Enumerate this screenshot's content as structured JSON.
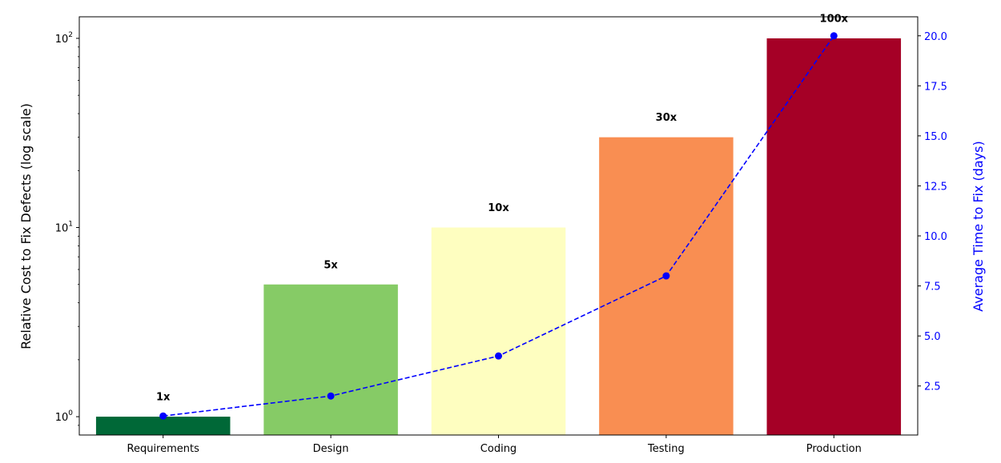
{
  "chart_data": {
    "type": "bar",
    "categories": [
      "Requirements",
      "Design",
      "Coding",
      "Testing",
      "Production"
    ],
    "values": [
      1,
      5,
      10,
      30,
      100
    ],
    "bar_labels": [
      "1x",
      "5x",
      "10x",
      "30x",
      "100x"
    ],
    "bar_colors": [
      "#006837",
      "#86cb66",
      "#fefec0",
      "#f98e52",
      "#a50026"
    ],
    "ylabel": "Relative Cost to Fix Defects (log scale)",
    "yscale": "log",
    "ylim": [
      0.8,
      130
    ],
    "yticks": [
      {
        "value": 1,
        "base": "10",
        "exp": "0"
      },
      {
        "value": 10,
        "base": "10",
        "exp": "1"
      },
      {
        "value": 100,
        "base": "10",
        "exp": "2"
      }
    ],
    "secondary": {
      "type": "line",
      "values": [
        1,
        2,
        4,
        8,
        20
      ],
      "ylabel": "Average Time to Fix (days)",
      "ylim": [
        0.05,
        20.95
      ],
      "yticks": [
        "2.5",
        "5.0",
        "7.5",
        "10.0",
        "12.5",
        "15.0",
        "17.5",
        "20.0"
      ],
      "color": "#0000ff",
      "linestyle": "dashed",
      "marker": "circle"
    },
    "grid": false,
    "legend": "none"
  }
}
